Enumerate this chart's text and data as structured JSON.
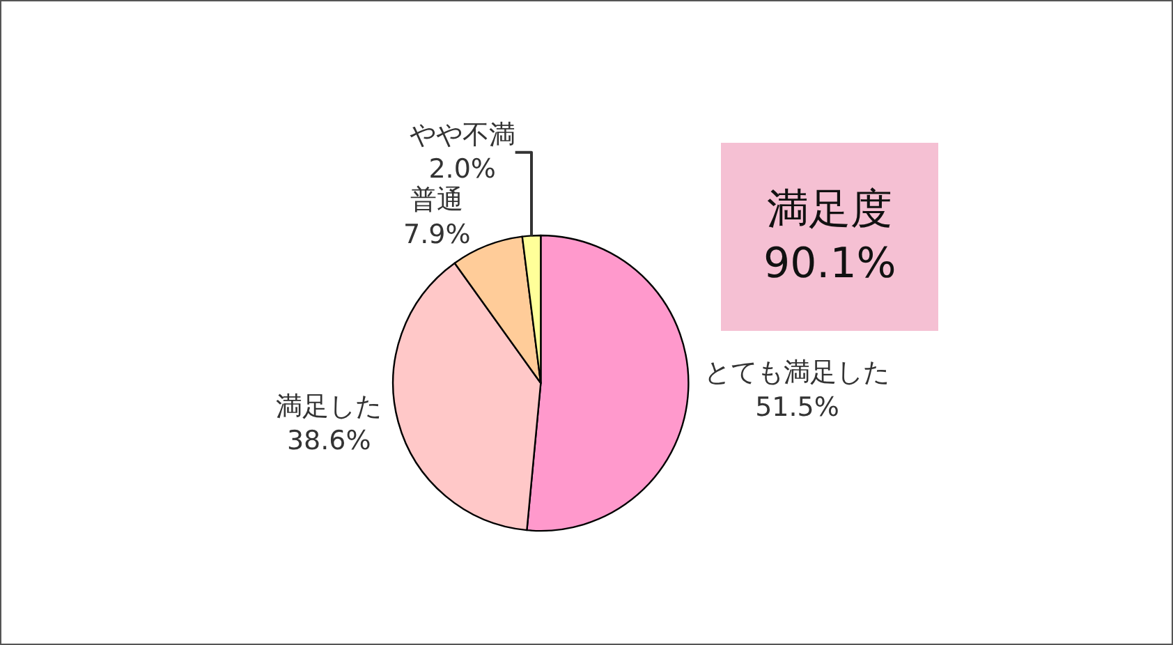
{
  "chart_data": {
    "type": "pie",
    "categories": [
      "とても満足した",
      "満足した",
      "普通",
      "やや不満"
    ],
    "values": [
      51.5,
      38.6,
      7.9,
      2.0
    ],
    "colors": [
      "#ff99cc",
      "#ffc8c8",
      "#ffcc99",
      "#ffff99"
    ],
    "value_labels": [
      "51.5%",
      "38.6%",
      "7.9%",
      "2.0%"
    ],
    "legend": false,
    "annotations": [
      "満足度\n90.1%"
    ]
  }
}
